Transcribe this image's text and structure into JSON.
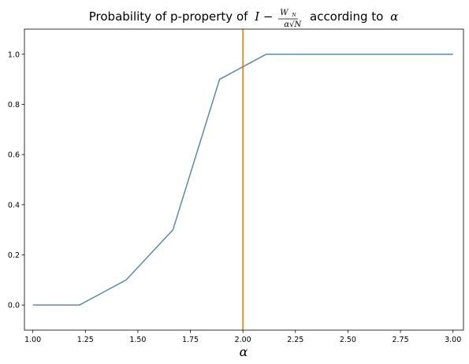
{
  "chart_data": {
    "type": "line",
    "title_prefix": "Probability of p-property of",
    "title_formula": {
      "lead": "I −",
      "numerator": "W",
      "numerator_sub": "N",
      "denominator": "α√N"
    },
    "title_suffix": "according to",
    "title_symbol": "α",
    "xlabel": "α",
    "ylabel": "",
    "xlim": [
      0.96,
      3.05
    ],
    "ylim": [
      -0.1,
      1.1
    ],
    "x_ticks": [
      1.0,
      1.25,
      1.5,
      1.75,
      2.0,
      2.25,
      2.5,
      2.75,
      3.0
    ],
    "x_tick_labels": [
      "1.00",
      "1.25",
      "1.50",
      "1.75",
      "2.00",
      "2.25",
      "2.50",
      "2.75",
      "3.00"
    ],
    "y_ticks": [
      0.0,
      0.2,
      0.4,
      0.6,
      0.8,
      1.0
    ],
    "y_tick_labels": [
      "0.0",
      "0.2",
      "0.4",
      "0.6",
      "0.8",
      "1.0"
    ],
    "grid": false,
    "series": [
      {
        "x": [
          1.0,
          1.222,
          1.444,
          1.667,
          1.889,
          2.111,
          2.333,
          2.556,
          2.778,
          3.0
        ],
        "values": [
          0.0,
          0.0,
          0.1,
          0.3,
          0.9,
          1.0,
          1.0,
          1.0,
          1.0,
          1.0
        ],
        "color": "#5b8aa6"
      }
    ],
    "vertical_line": {
      "x": 2.0,
      "color": "#e07b10"
    }
  }
}
